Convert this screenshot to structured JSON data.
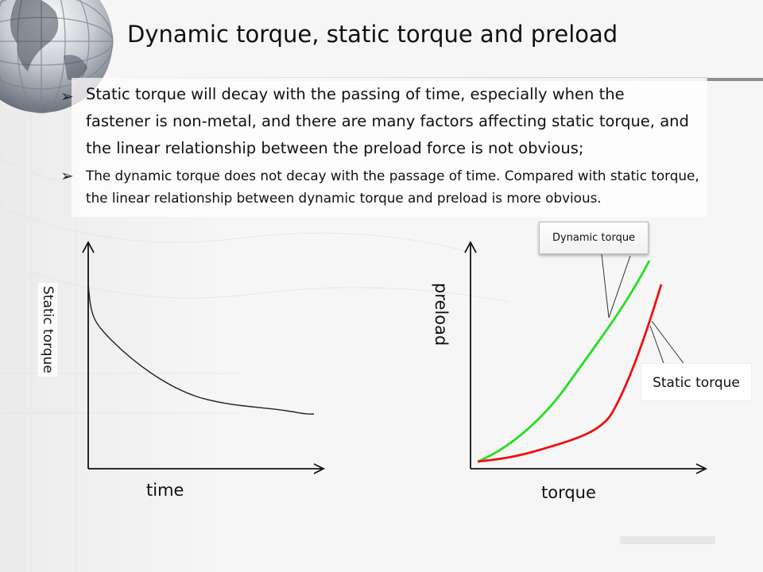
{
  "slide": {
    "title": "Dynamic torque, static torque and preload",
    "bullets": [
      "Static torque will decay with the passing of time, especially when the fastener is non-metal, and there are many factors affecting static torque, and the linear relationship between the preload force is not obvious;",
      "The dynamic torque does not decay with the passage of time. Compared with static torque, the linear relationship between dynamic torque and preload is more obvious."
    ],
    "bullet_marker": "➢"
  },
  "chart_data": [
    {
      "type": "line",
      "title": "",
      "xlabel": "time",
      "ylabel": "Static torque",
      "tick_labels": "none",
      "series": [
        {
          "color": "#222222",
          "shape": "decaying curve"
        }
      ]
    },
    {
      "type": "line",
      "title": "",
      "xlabel": "torque",
      "ylabel": "preload",
      "tick_labels": "none",
      "annotations": [
        "Dynamic torque",
        "Static torque"
      ],
      "series": [
        {
          "name": "Dynamic torque",
          "color": "#22e022",
          "shape": "nearly linear rising curve"
        },
        {
          "name": "Static torque",
          "color": "#ee1111",
          "shape": "flat then steeply rising curve"
        }
      ]
    }
  ],
  "colors": {
    "dynamic": "#22e022",
    "static": "#ee1111",
    "axis": "#111111"
  }
}
